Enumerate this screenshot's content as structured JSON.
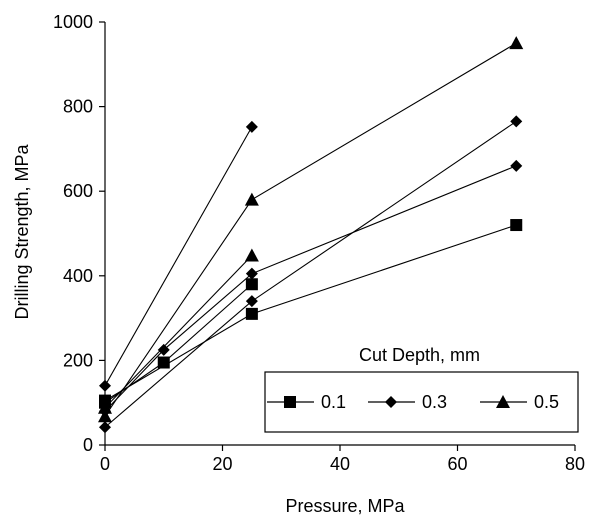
{
  "chart_data": {
    "type": "line",
    "xlabel": "Pressure, MPa",
    "ylabel": "Drilling Strength, MPa",
    "xlim": [
      0,
      80
    ],
    "ylim": [
      0,
      1000
    ],
    "xticks": [
      "0",
      "20",
      "40",
      "60",
      "80"
    ],
    "yticks": [
      "0",
      "200",
      "400",
      "600",
      "800",
      "1000"
    ],
    "grid": false,
    "legend": {
      "title": "Cut Depth, mm",
      "placement": "bottom-right",
      "entries": [
        {
          "label": "0.1",
          "marker": "square"
        },
        {
          "label": "0.3",
          "marker": "diamond"
        },
        {
          "label": "0.5",
          "marker": "triangle"
        }
      ]
    },
    "series": [
      {
        "name": "0.1",
        "marker": "square",
        "x": [
          0,
          10,
          25
        ],
        "y": [
          100,
          195,
          380
        ]
      },
      {
        "name": "0.1",
        "marker": "square",
        "x": [
          0,
          25,
          70
        ],
        "y": [
          105,
          310,
          520
        ]
      },
      {
        "name": "0.3",
        "marker": "diamond",
        "x": [
          0,
          25
        ],
        "y": [
          140,
          752
        ]
      },
      {
        "name": "0.3",
        "marker": "diamond",
        "x": [
          0,
          10,
          25,
          70
        ],
        "y": [
          80,
          225,
          405,
          660
        ]
      },
      {
        "name": "0.3",
        "marker": "diamond",
        "x": [
          0,
          25,
          70
        ],
        "y": [
          42,
          340,
          765
        ]
      },
      {
        "name": "0.5",
        "marker": "triangle",
        "x": [
          0,
          25,
          70
        ],
        "y": [
          68,
          580,
          950
        ]
      },
      {
        "name": "0.5",
        "marker": "triangle",
        "x": [
          0,
          25
        ],
        "y": [
          88,
          448
        ]
      }
    ]
  }
}
